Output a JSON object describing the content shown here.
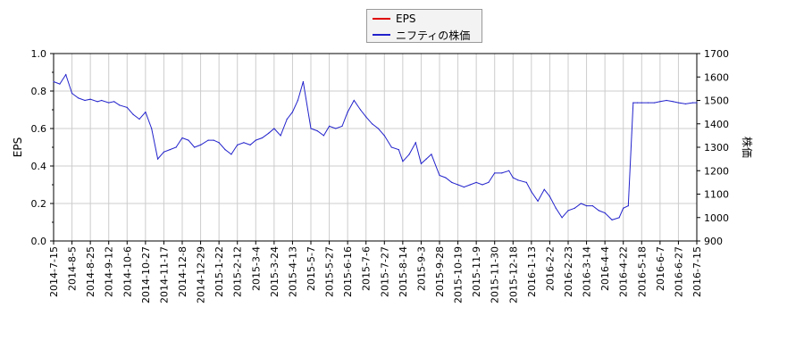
{
  "chart_data": {
    "type": "line",
    "ylabel_left": "EPS",
    "ylabel_right": "株価",
    "left_axis": {
      "ylim": [
        0,
        1.0
      ],
      "ticks": [
        "0.0",
        "0.2",
        "0.4",
        "0.6",
        "0.8",
        "1.0"
      ]
    },
    "right_axis": {
      "ylim": [
        900,
        1700
      ],
      "ticks": [
        "900",
        "1000",
        "1100",
        "1200",
        "1300",
        "1400",
        "1500",
        "1600",
        "1700"
      ]
    },
    "grid": true,
    "legend_position": "top-center",
    "x_ticks": [
      "2014-7-15",
      "2014-8-5",
      "2014-8-25",
      "2014-9-12",
      "2014-10-6",
      "2014-10-27",
      "2014-11-17",
      "2014-12-8",
      "2014-12-29",
      "2015-1-22",
      "2015-2-12",
      "2015-3-4",
      "2015-3-24",
      "2015-4-13",
      "2015-5-7",
      "2015-5-27",
      "2015-6-16",
      "2015-7-6",
      "2015-7-27",
      "2015-8-14",
      "2015-9-3",
      "2015-9-28",
      "2015-10-19",
      "2015-11-9",
      "2015-11-30",
      "2015-12-18",
      "2016-1-13",
      "2016-2-2",
      "2016-2-23",
      "2016-3-14",
      "2016-4-4",
      "2016-4-22",
      "2016-5-18",
      "2016-6-7",
      "2016-6-27",
      "2016-7-15"
    ],
    "series": [
      {
        "name": "EPS",
        "color": "#e00000",
        "axis": "left",
        "values": []
      },
      {
        "name": "ニフティの株価",
        "color": "#2222cc",
        "axis": "right",
        "x": [
          "2014-7-15",
          "2014-7-22",
          "2014-7-29",
          "2014-8-5",
          "2014-8-12",
          "2014-8-19",
          "2014-8-25",
          "2014-9-1",
          "2014-9-5",
          "2014-9-12",
          "2014-9-19",
          "2014-9-26",
          "2014-10-6",
          "2014-10-13",
          "2014-10-20",
          "2014-10-27",
          "2014-11-3",
          "2014-11-10",
          "2014-11-17",
          "2014-11-24",
          "2014-12-1",
          "2014-12-8",
          "2014-12-15",
          "2014-12-22",
          "2014-12-29",
          "2015-1-8",
          "2015-1-15",
          "2015-1-22",
          "2015-1-29",
          "2015-2-5",
          "2015-2-12",
          "2015-2-19",
          "2015-2-26",
          "2015-3-4",
          "2015-3-11",
          "2015-3-18",
          "2015-3-24",
          "2015-3-31",
          "2015-4-7",
          "2015-4-13",
          "2015-4-20",
          "2015-4-27",
          "2015-5-7",
          "2015-5-14",
          "2015-5-21",
          "2015-5-27",
          "2015-6-3",
          "2015-6-10",
          "2015-6-16",
          "2015-6-23",
          "2015-6-30",
          "2015-7-6",
          "2015-7-13",
          "2015-7-20",
          "2015-7-27",
          "2015-8-3",
          "2015-8-10",
          "2015-8-14",
          "2015-8-21",
          "2015-8-28",
          "2015-9-3",
          "2015-9-10",
          "2015-9-17",
          "2015-9-28",
          "2015-10-5",
          "2015-10-12",
          "2015-10-19",
          "2015-10-26",
          "2015-11-2",
          "2015-11-9",
          "2015-11-16",
          "2015-11-23",
          "2015-11-30",
          "2015-12-7",
          "2015-12-14",
          "2015-12-18",
          "2015-12-25",
          "2016-1-6",
          "2016-1-13",
          "2016-1-20",
          "2016-1-27",
          "2016-2-2",
          "2016-2-9",
          "2016-2-16",
          "2016-2-23",
          "2016-3-1",
          "2016-3-8",
          "2016-3-14",
          "2016-3-21",
          "2016-3-28",
          "2016-4-4",
          "2016-4-11",
          "2016-4-18",
          "2016-4-22",
          "2016-4-29",
          "2016-5-6",
          "2016-5-12",
          "2016-5-18",
          "2016-5-25",
          "2016-6-1",
          "2016-6-7",
          "2016-6-14",
          "2016-6-21",
          "2016-6-27",
          "2016-7-4",
          "2016-7-11",
          "2016-7-15"
        ],
        "values": [
          1580,
          1570,
          1610,
          1530,
          1510,
          1500,
          1505,
          1495,
          1500,
          1490,
          1495,
          1480,
          1470,
          1440,
          1420,
          1450,
          1380,
          1250,
          1280,
          1290,
          1300,
          1340,
          1330,
          1300,
          1310,
          1330,
          1330,
          1320,
          1290,
          1270,
          1310,
          1320,
          1310,
          1330,
          1340,
          1360,
          1380,
          1350,
          1420,
          1450,
          1500,
          1580,
          1380,
          1370,
          1350,
          1390,
          1380,
          1390,
          1450,
          1500,
          1460,
          1430,
          1400,
          1380,
          1350,
          1300,
          1290,
          1240,
          1270,
          1320,
          1230,
          1250,
          1270,
          1180,
          1170,
          1150,
          1140,
          1130,
          1140,
          1150,
          1140,
          1150,
          1190,
          1190,
          1200,
          1170,
          1160,
          1150,
          1110,
          1070,
          1120,
          1090,
          1040,
          1000,
          1030,
          1040,
          1060,
          1050,
          1050,
          1030,
          1020,
          990,
          1000,
          1040,
          1050,
          1490,
          1490,
          1490,
          1490,
          1490,
          1495,
          1500,
          1495,
          1490,
          1485,
          1490,
          1490
        ]
      }
    ]
  }
}
